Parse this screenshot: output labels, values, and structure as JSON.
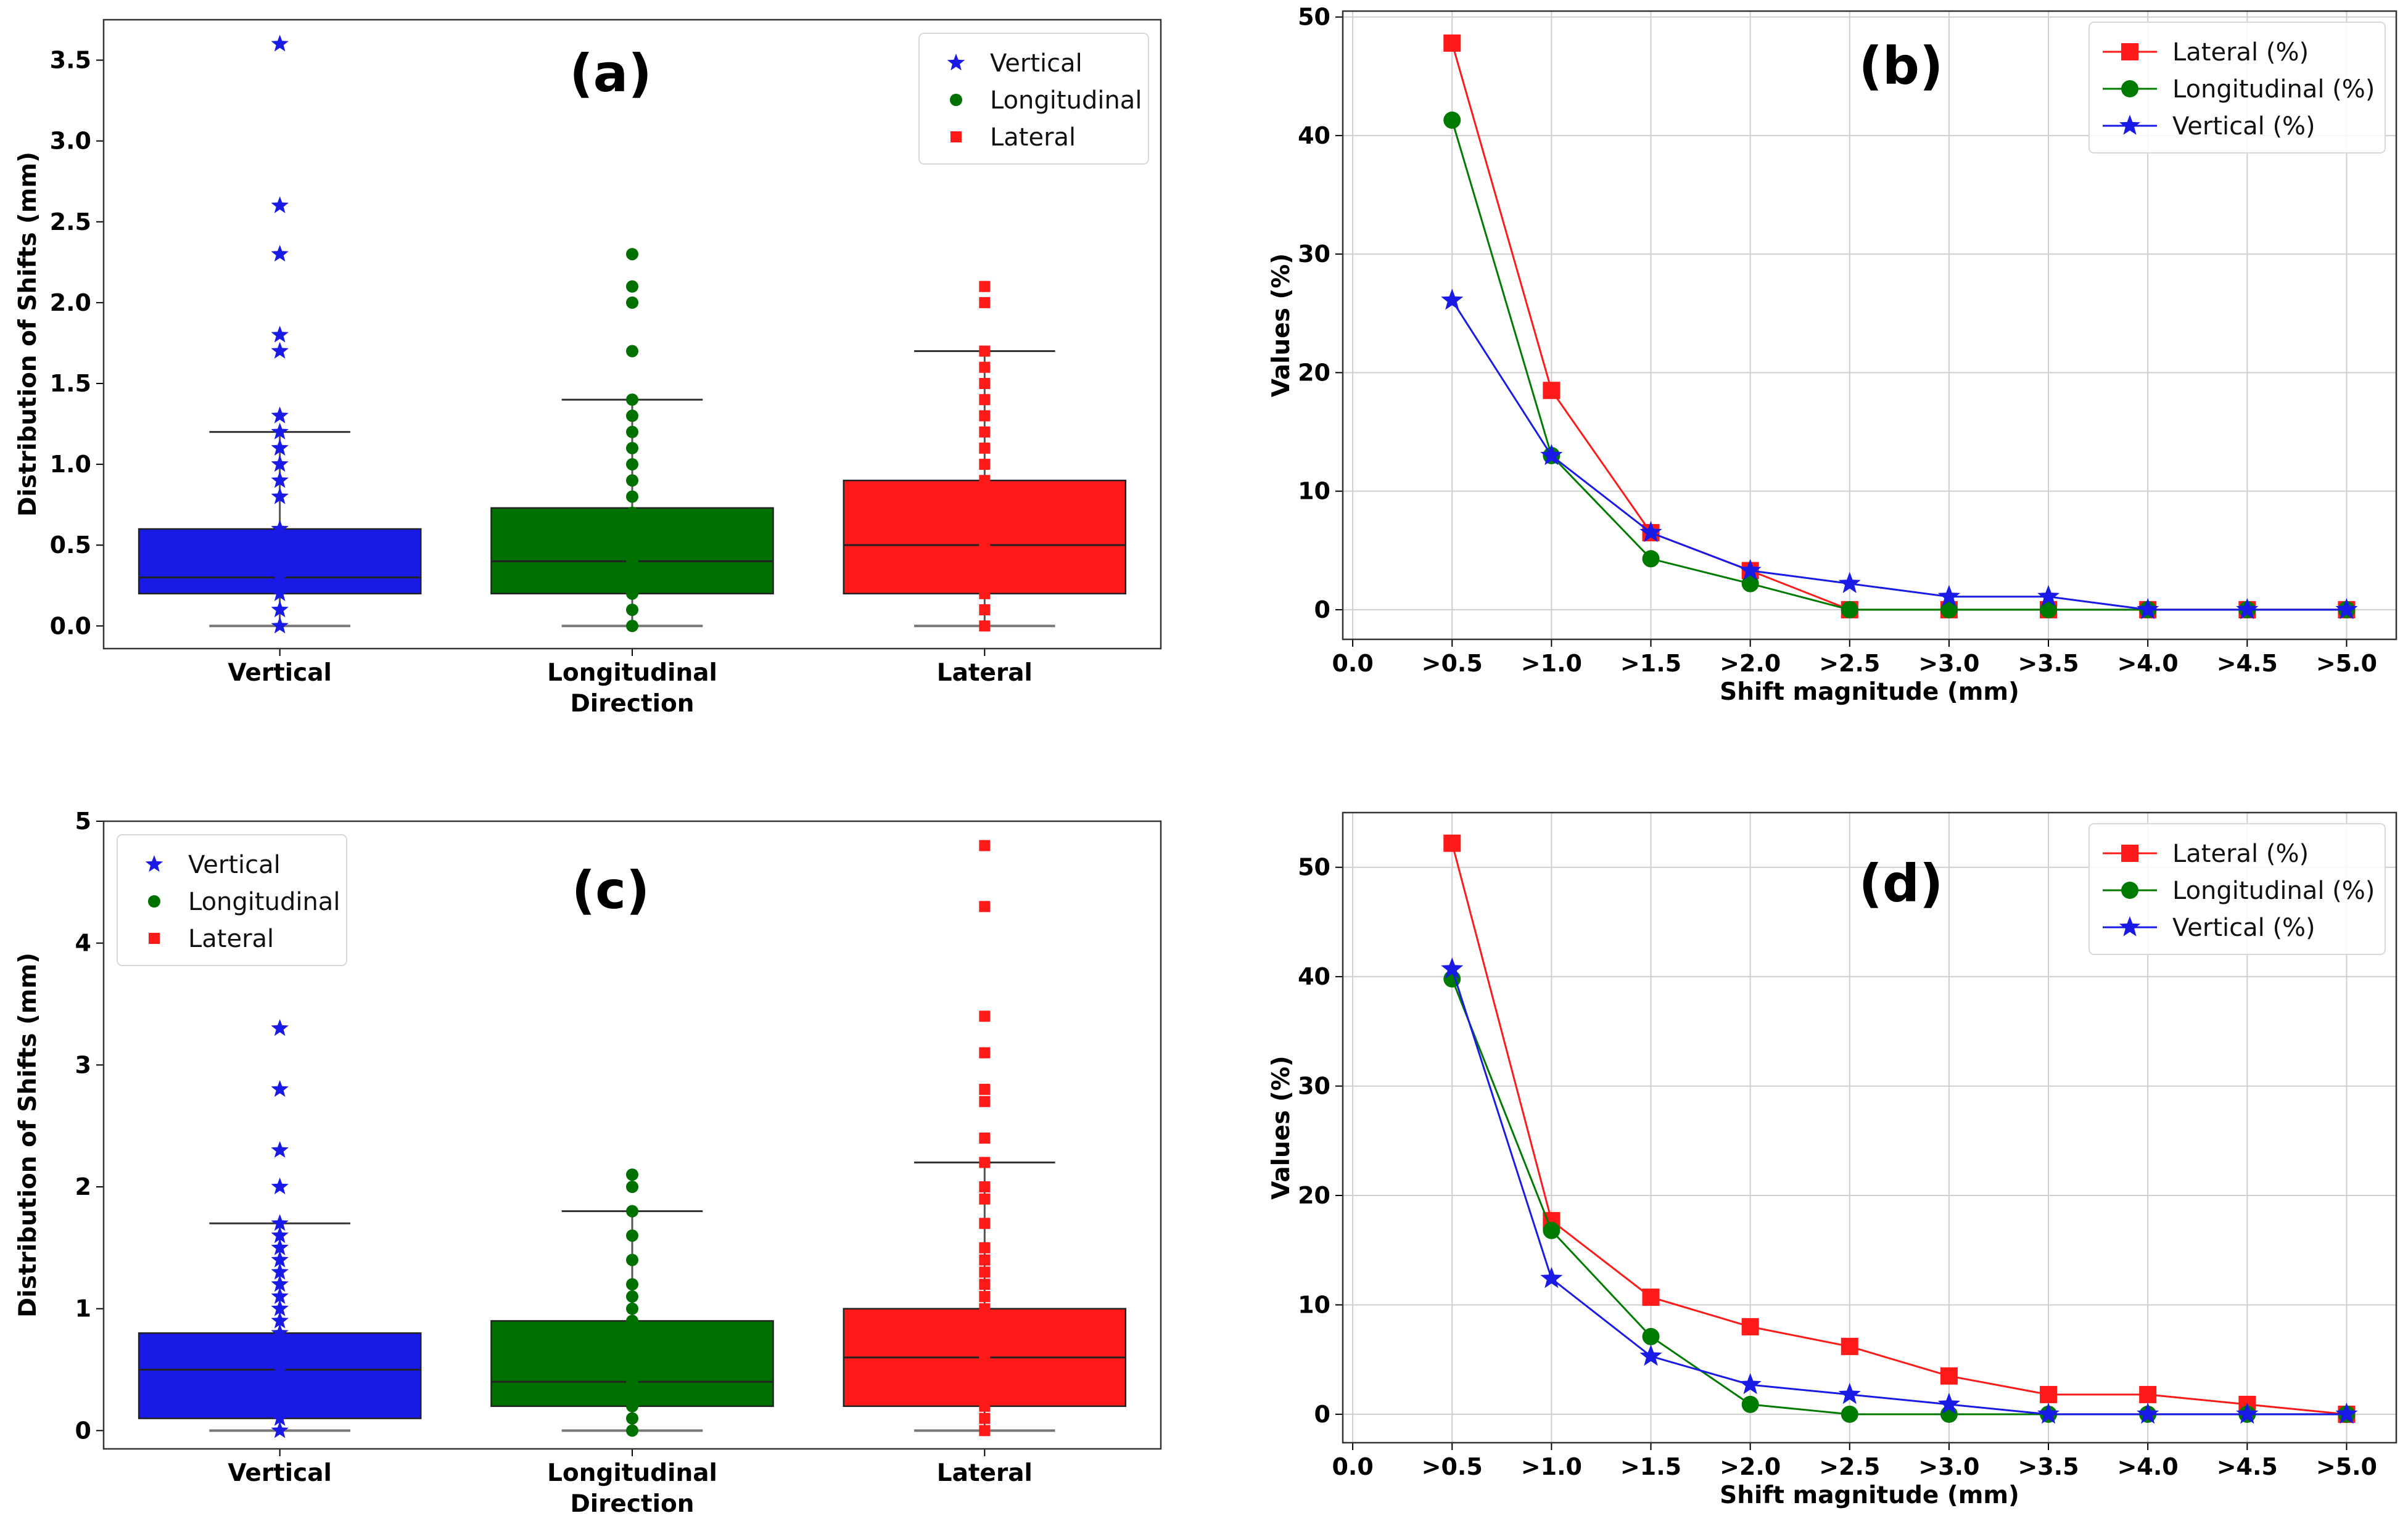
{
  "chart_data": [
    {
      "type": "box",
      "panel_label": "(a)",
      "ylabel": "Distribution of Shifts (mm)",
      "ylim": [
        -0.14,
        3.75
      ],
      "yticks": [
        0.0,
        0.5,
        1.0,
        1.5,
        2.0,
        2.5,
        3.0,
        3.5
      ],
      "ytick_labels": [
        "0.0",
        "0.5",
        "1.0",
        "1.5",
        "2.0",
        "2.5",
        "3.0",
        "3.5"
      ],
      "categories": [
        "Vertical",
        "Longitudinal\nDirection",
        "Lateral"
      ],
      "boxes": [
        {
          "name": "Vertical",
          "color": "#1a1ae6",
          "q1": 0.2,
          "median": 0.3,
          "q3": 0.6,
          "whisker_low": 0.0,
          "whisker_high": 1.2,
          "points": [
            0.0,
            0.1,
            0.2,
            0.3,
            0.4,
            0.5,
            0.6,
            0.8,
            0.9,
            1.0,
            1.1,
            1.2,
            1.3,
            1.7,
            1.8,
            2.3,
            2.6,
            3.6
          ]
        },
        {
          "name": "Longitudinal",
          "color": "#007000",
          "q1": 0.2,
          "median": 0.4,
          "q3": 0.73,
          "whisker_low": 0.0,
          "whisker_high": 1.4,
          "points": [
            0.0,
            0.1,
            0.2,
            0.3,
            0.4,
            0.5,
            0.6,
            0.7,
            0.8,
            0.9,
            1.0,
            1.1,
            1.2,
            1.3,
            1.4,
            1.7,
            2.0,
            2.1,
            2.3
          ]
        },
        {
          "name": "Lateral",
          "color": "#ff1a1a",
          "q1": 0.2,
          "median": 0.5,
          "q3": 0.9,
          "whisker_low": 0.0,
          "whisker_high": 1.7,
          "points": [
            0.0,
            0.1,
            0.2,
            0.3,
            0.4,
            0.5,
            0.6,
            0.7,
            0.8,
            0.9,
            1.0,
            1.1,
            1.2,
            1.3,
            1.4,
            1.5,
            1.6,
            1.7,
            2.0,
            2.1
          ]
        }
      ],
      "legend": {
        "position": "top-right",
        "entries": [
          "Vertical",
          "Longitudinal",
          "Lateral"
        ]
      }
    },
    {
      "type": "line",
      "panel_label": "(b)",
      "xlabel": "Shift magnitude (mm)",
      "ylabel": "Values (%)",
      "xticks": [
        "0.0",
        ">0.5",
        ">1.0",
        ">1.5",
        ">2.0",
        ">2.5",
        ">3.0",
        ">3.5",
        ">4.0",
        ">4.5",
        ">5.0"
      ],
      "x": [
        0.5,
        1.0,
        1.5,
        2.0,
        2.5,
        3.0,
        3.5,
        4.0,
        4.5,
        5.0
      ],
      "xlim": [
        -0.05,
        5.25
      ],
      "ylim": [
        -2.5,
        50.5
      ],
      "yticks": [
        0,
        10,
        20,
        30,
        40,
        50
      ],
      "ytick_labels": [
        "0",
        "10",
        "20",
        "30",
        "40",
        "50"
      ],
      "series": [
        {
          "name": "Lateral (%)",
          "color": "#ff1a1a",
          "marker": "square",
          "values": [
            47.8,
            18.5,
            6.5,
            3.3,
            0,
            0,
            0,
            0,
            0,
            0
          ]
        },
        {
          "name": "Longitudinal (%)",
          "color": "#007a00",
          "marker": "circle",
          "values": [
            41.3,
            13.0,
            4.3,
            2.2,
            0,
            0,
            0,
            0,
            0,
            0
          ]
        },
        {
          "name": "Vertical (%)",
          "color": "#1a1ae6",
          "marker": "star",
          "values": [
            26.1,
            13.0,
            6.5,
            3.3,
            2.2,
            1.1,
            1.1,
            0,
            0,
            0
          ]
        }
      ],
      "legend": {
        "position": "top-right",
        "entries": [
          "Lateral (%)",
          "Longitudinal (%)",
          "Vertical (%)"
        ]
      }
    },
    {
      "type": "box",
      "panel_label": "(c)",
      "ylabel": "Distribution of Shifts (mm)",
      "ylim": [
        -0.15,
        5.0
      ],
      "yticks": [
        0,
        1,
        2,
        3,
        4,
        5
      ],
      "ytick_labels": [
        "0",
        "1",
        "2",
        "3",
        "4",
        "5"
      ],
      "categories": [
        "Vertical",
        "Longitudinal\nDirection",
        "Lateral"
      ],
      "boxes": [
        {
          "name": "Vertical",
          "color": "#1a1ae6",
          "q1": 0.1,
          "median": 0.5,
          "q3": 0.8,
          "whisker_low": 0.0,
          "whisker_high": 1.7,
          "points": [
            0.0,
            0.1,
            0.2,
            0.3,
            0.4,
            0.5,
            0.6,
            0.7,
            0.8,
            0.9,
            1.0,
            1.1,
            1.2,
            1.3,
            1.4,
            1.5,
            1.6,
            1.7,
            2.0,
            2.3,
            2.8,
            3.3
          ]
        },
        {
          "name": "Longitudinal",
          "color": "#007000",
          "q1": 0.2,
          "median": 0.4,
          "q3": 0.9,
          "whisker_low": 0.0,
          "whisker_high": 1.8,
          "points": [
            0.0,
            0.1,
            0.2,
            0.3,
            0.4,
            0.5,
            0.6,
            0.7,
            0.8,
            0.9,
            1.0,
            1.1,
            1.2,
            1.4,
            1.6,
            1.8,
            2.0,
            2.1
          ]
        },
        {
          "name": "Lateral",
          "color": "#ff1a1a",
          "q1": 0.2,
          "median": 0.6,
          "q3": 1.0,
          "whisker_low": 0.0,
          "whisker_high": 2.2,
          "points": [
            0.0,
            0.1,
            0.2,
            0.3,
            0.4,
            0.5,
            0.6,
            0.7,
            0.8,
            0.9,
            1.0,
            1.1,
            1.2,
            1.3,
            1.4,
            1.5,
            1.7,
            1.9,
            2.0,
            2.2,
            2.4,
            2.7,
            2.8,
            3.1,
            3.4,
            4.3,
            4.8
          ]
        }
      ],
      "legend": {
        "position": "top-left",
        "entries": [
          "Vertical",
          "Longitudinal",
          "Lateral"
        ]
      }
    },
    {
      "type": "line",
      "panel_label": "(d)",
      "xlabel": "Shift magnitude (mm)",
      "ylabel": "Values (%)",
      "xticks": [
        "0.0",
        ">0.5",
        ">1.0",
        ">1.5",
        ">2.0",
        ">2.5",
        ">3.0",
        ">3.5",
        ">4.0",
        ">4.5",
        ">5.0"
      ],
      "x": [
        0.5,
        1.0,
        1.5,
        2.0,
        2.5,
        3.0,
        3.5,
        4.0,
        4.5,
        5.0
      ],
      "xlim": [
        -0.05,
        5.25
      ],
      "ylim": [
        -2.6,
        55.0
      ],
      "yticks": [
        0,
        10,
        20,
        30,
        40,
        50
      ],
      "ytick_labels": [
        "0",
        "10",
        "20",
        "30",
        "40",
        "50"
      ],
      "series": [
        {
          "name": "Lateral (%)",
          "color": "#ff1a1a",
          "marker": "square",
          "values": [
            52.2,
            17.7,
            10.7,
            8.0,
            6.2,
            3.5,
            1.8,
            1.8,
            0.9,
            0
          ]
        },
        {
          "name": "Longitudinal (%)",
          "color": "#007a00",
          "marker": "circle",
          "values": [
            39.8,
            16.8,
            7.1,
            0.9,
            0,
            0,
            0,
            0,
            0,
            0
          ]
        },
        {
          "name": "Vertical (%)",
          "color": "#1a1ae6",
          "marker": "star",
          "values": [
            40.7,
            12.4,
            5.3,
            2.7,
            1.8,
            0.9,
            0,
            0,
            0,
            0
          ]
        }
      ],
      "legend": {
        "position": "top-right",
        "entries": [
          "Lateral (%)",
          "Longitudinal (%)",
          "Vertical (%)"
        ]
      }
    }
  ]
}
